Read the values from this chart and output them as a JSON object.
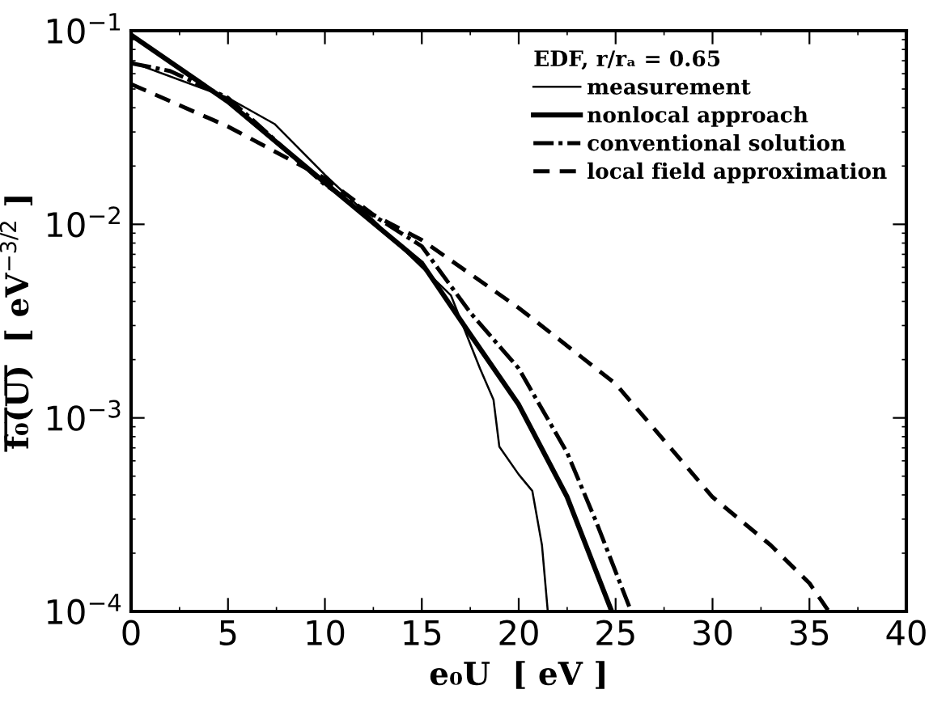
{
  "chart_data": {
    "type": "line",
    "xlabel": "e₀U  [ eV ]",
    "ylabel": "f̅₀̅(̅U̅)̅  [ eV$^{−3/2}$ ]",
    "legend_title": "EDF, r/rₐ = 0.65",
    "legend": "top right",
    "grid": false,
    "log": "y",
    "xlim": [
      0,
      40
    ],
    "xticks": [
      0,
      5,
      10,
      15,
      20,
      25,
      30,
      35,
      40
    ],
    "ylim": [
      0.0001,
      0.1
    ],
    "yticks": [
      {
        "value": 0.0001,
        "label": "10$^{−4}$"
      },
      {
        "value": 0.001,
        "label": "10$^{−3}$"
      },
      {
        "value": 0.01,
        "label": "10$^{−2}$"
      },
      {
        "value": 0.1,
        "label": "10$^{−1}$"
      }
    ],
    "series": [
      {
        "name": "measurement",
        "color": "#000000",
        "line_style": "solid",
        "x": [
          0,
          5,
          7.4,
          10,
          12.5,
          15,
          16.5,
          18,
          18.7,
          19,
          20,
          20.7,
          21.2,
          21.5
        ],
        "values": [
          0.069,
          0.045,
          0.033,
          0.018,
          0.0105,
          0.006,
          0.0043,
          0.0018,
          0.00124,
          0.00071,
          0.00051,
          0.00042,
          0.00022,
          0.0001
        ]
      },
      {
        "name": "nonlocal approach",
        "color": "#000000",
        "line_style": "solid",
        "x": [
          0,
          5,
          10,
          15,
          17.5,
          20,
          22.5,
          24.8
        ],
        "values": [
          0.095,
          0.043,
          0.0164,
          0.0063,
          0.0027,
          0.00117,
          0.00039,
          0.0001
        ]
      },
      {
        "name": "conventional solution",
        "color": "#000000",
        "line_style": "dashdot",
        "x": [
          0,
          2,
          5,
          10,
          15,
          17.5,
          20,
          22.5,
          24,
          25.8
        ],
        "values": [
          0.068,
          0.062,
          0.045,
          0.016,
          0.0077,
          0.0035,
          0.0018,
          0.00066,
          0.00029,
          0.0001
        ]
      },
      {
        "name": "local field approximation",
        "color": "#000000",
        "line_style": "dashed",
        "x": [
          0,
          5,
          10,
          12.5,
          15,
          20,
          25,
          30,
          33,
          35,
          36
        ],
        "values": [
          0.053,
          0.032,
          0.0173,
          0.0112,
          0.0083,
          0.0037,
          0.0015,
          0.00039,
          0.00022,
          0.00014,
          0.0001
        ]
      }
    ]
  }
}
